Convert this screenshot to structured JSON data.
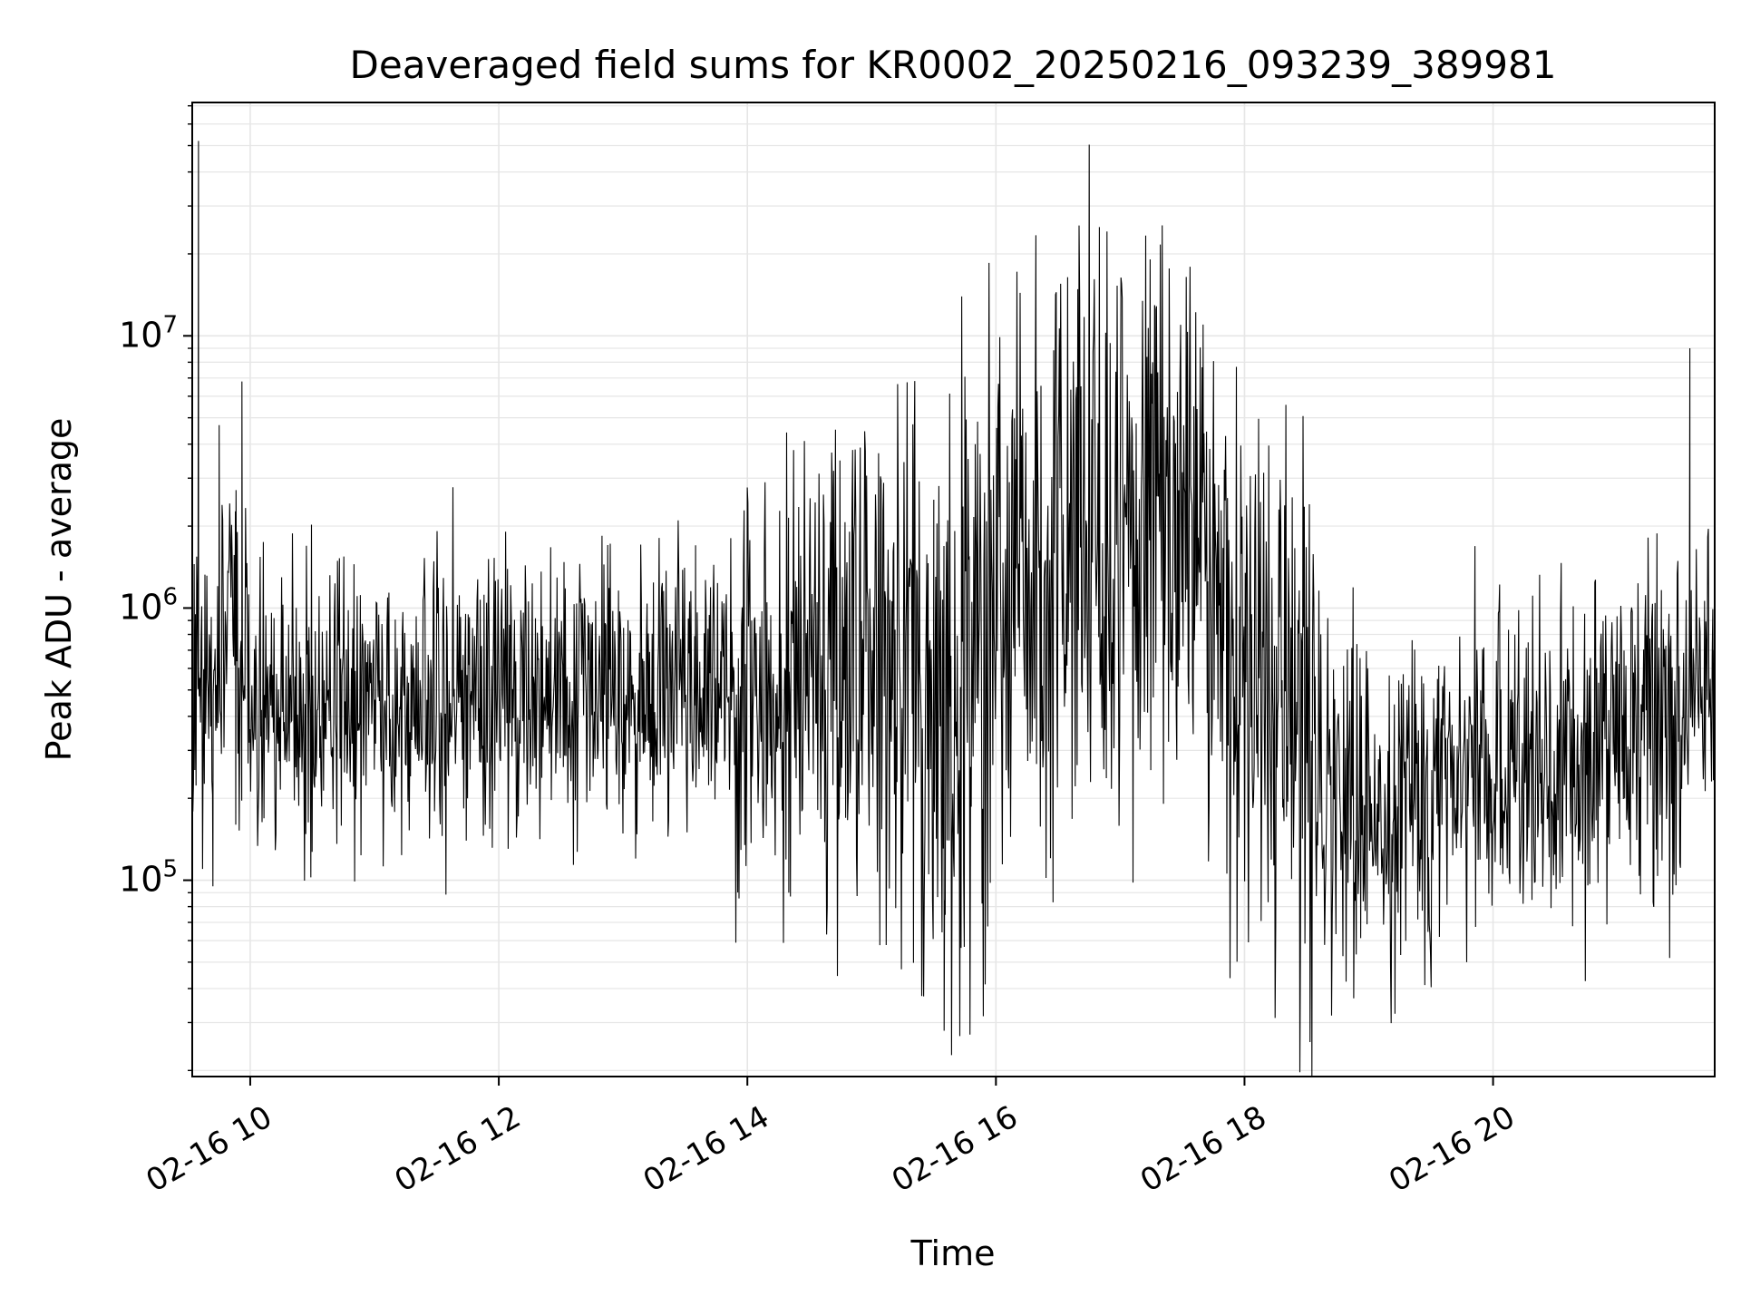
{
  "chart_data": {
    "type": "line",
    "title": "Deaveraged field sums for KR0002_20250216_093239_389981",
    "xlabel": "Time",
    "ylabel": "Peak ADU - average",
    "x_scale": "time",
    "y_scale": "log",
    "xlim": [
      "2025-02-16T09:32",
      "2025-02-16T21:47"
    ],
    "ylim": [
      19000,
      72000000
    ],
    "x_ticks": [
      {
        "value": "2025-02-16T10:00",
        "label": "02-16 10"
      },
      {
        "value": "2025-02-16T12:00",
        "label": "02-16 12"
      },
      {
        "value": "2025-02-16T14:00",
        "label": "02-16 14"
      },
      {
        "value": "2025-02-16T16:00",
        "label": "02-16 16"
      },
      {
        "value": "2025-02-16T18:00",
        "label": "02-16 18"
      },
      {
        "value": "2025-02-16T20:00",
        "label": "02-16 20"
      }
    ],
    "y_ticks": [
      {
        "value": 100000,
        "base": "10",
        "exp": "5"
      },
      {
        "value": 1000000,
        "base": "10",
        "exp": "6"
      },
      {
        "value": 10000000,
        "base": "10",
        "exp": "7"
      }
    ],
    "grid": true,
    "line_color": "#000000",
    "grid_color": "#e6e6e6",
    "series": [
      {
        "x": [
          "2025-02-16T09:32",
          "2025-02-16T09:35",
          "2025-02-16T09:37",
          "2025-02-16T09:40",
          "2025-02-16T09:42",
          "2025-02-16T09:45",
          "2025-02-16T09:47",
          "2025-02-16T09:50",
          "2025-02-16T09:53",
          "2025-02-16T09:56",
          "2025-02-16T10:00",
          "2025-02-16T10:05",
          "2025-02-16T10:10",
          "2025-02-16T10:20",
          "2025-02-16T10:30",
          "2025-02-16T10:45",
          "2025-02-16T11:00",
          "2025-02-16T11:15",
          "2025-02-16T11:20",
          "2025-02-16T11:30",
          "2025-02-16T11:45",
          "2025-02-16T12:00",
          "2025-02-16T12:15",
          "2025-02-16T12:30",
          "2025-02-16T12:45",
          "2025-02-16T13:00",
          "2025-02-16T13:15",
          "2025-02-16T13:30",
          "2025-02-16T13:35",
          "2025-02-16T13:45",
          "2025-02-16T14:00",
          "2025-02-16T14:10",
          "2025-02-16T14:20",
          "2025-02-16T14:30",
          "2025-02-16T14:40",
          "2025-02-16T14:50",
          "2025-02-16T15:00",
          "2025-02-16T15:10",
          "2025-02-16T15:20",
          "2025-02-16T15:25",
          "2025-02-16T15:30",
          "2025-02-16T15:35",
          "2025-02-16T15:40",
          "2025-02-16T15:50",
          "2025-02-16T16:00",
          "2025-02-16T16:10",
          "2025-02-16T16:20",
          "2025-02-16T16:30",
          "2025-02-16T16:40",
          "2025-02-16T16:50",
          "2025-02-16T17:00",
          "2025-02-16T17:10",
          "2025-02-16T17:20",
          "2025-02-16T17:30",
          "2025-02-16T17:40",
          "2025-02-16T17:50",
          "2025-02-16T18:00",
          "2025-02-16T18:10",
          "2025-02-16T18:20",
          "2025-02-16T18:30",
          "2025-02-16T18:40",
          "2025-02-16T18:50",
          "2025-02-16T19:00",
          "2025-02-16T19:15",
          "2025-02-16T19:30",
          "2025-02-16T19:45",
          "2025-02-16T20:00",
          "2025-02-16T20:15",
          "2025-02-16T20:30",
          "2025-02-16T20:45",
          "2025-02-16T21:00",
          "2025-02-16T21:15",
          "2025-02-16T21:30",
          "2025-02-16T21:35",
          "2025-02-16T21:40",
          "2025-02-16T21:47"
        ],
        "values": [
          420000,
          52000000,
          110000,
          600000,
          95000,
          4700000,
          700000,
          1800000,
          160000,
          6800000,
          500000,
          650000,
          200000,
          500000,
          450000,
          420000,
          460000,
          480000,
          420000,
          1200000,
          450000,
          420000,
          480000,
          520000,
          480000,
          500000,
          480000,
          450000,
          1700000,
          400000,
          550000,
          520000,
          90000,
          600000,
          500000,
          520000,
          800000,
          1000000,
          350000,
          44000,
          2500000,
          28000,
          300000,
          4000000,
          600000,
          1200000,
          1500000,
          2000000,
          1500000,
          11000000,
          1800000,
          1400000,
          2000000,
          1800000,
          11000000,
          900000,
          600000,
          500000,
          420000,
          350000,
          170000,
          180000,
          200000,
          160000,
          220000,
          240000,
          260000,
          250000,
          280000,
          300000,
          360000,
          380000,
          380000,
          9000000,
          480000,
          560000
        ]
      }
    ]
  }
}
